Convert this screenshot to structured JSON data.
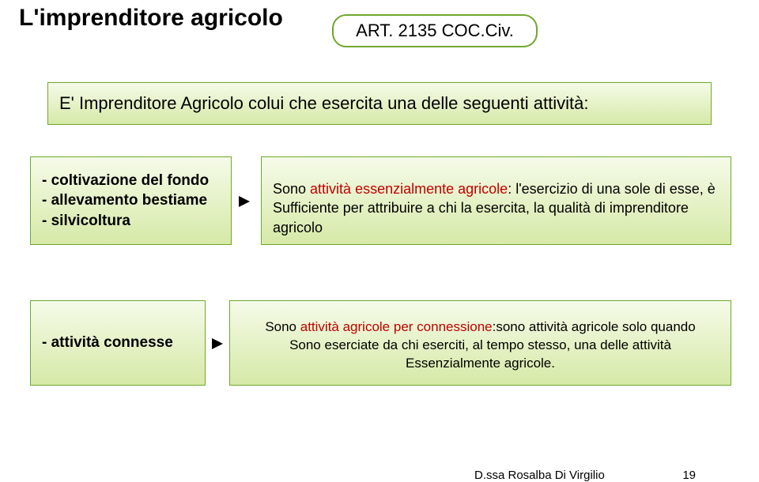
{
  "colors": {
    "box_border": "#6fa82e",
    "gradient_top": "#f5fbe9",
    "gradient_bottom": "#d6e9a7",
    "red": "#c00000",
    "black": "#000000",
    "background": "#ffffff"
  },
  "title": "L'imprenditore agricolo",
  "badge": "ART. 2135 COC.Civ.",
  "intro": "E' Imprenditore Agricolo colui che esercita una delle seguenti attività:",
  "left1": {
    "line1": "- coltivazione del fondo",
    "line2": "- allevamento bestiame",
    "line3": "- silvicoltura"
  },
  "right1": {
    "prefix": "Sono ",
    "red": "attività essenzialmente agricole",
    "rest1": ": l'esercizio di una sole di esse, è",
    "rest2": "Sufficiente per attribuire a chi la esercita, la qualità di imprenditore agricolo"
  },
  "left2": "- attività connesse",
  "right2": {
    "prefix": "Sono ",
    "red": "attività agricole per connessione",
    "rest1": ":sono attività agricole solo quando",
    "rest2": "Sono eserciate da chi eserciti, al tempo stesso, una delle attività",
    "rest3": "Essenzialmente agricole."
  },
  "footer": {
    "author": "D.ssa Rosalba Di Virgilio",
    "page": "19"
  }
}
